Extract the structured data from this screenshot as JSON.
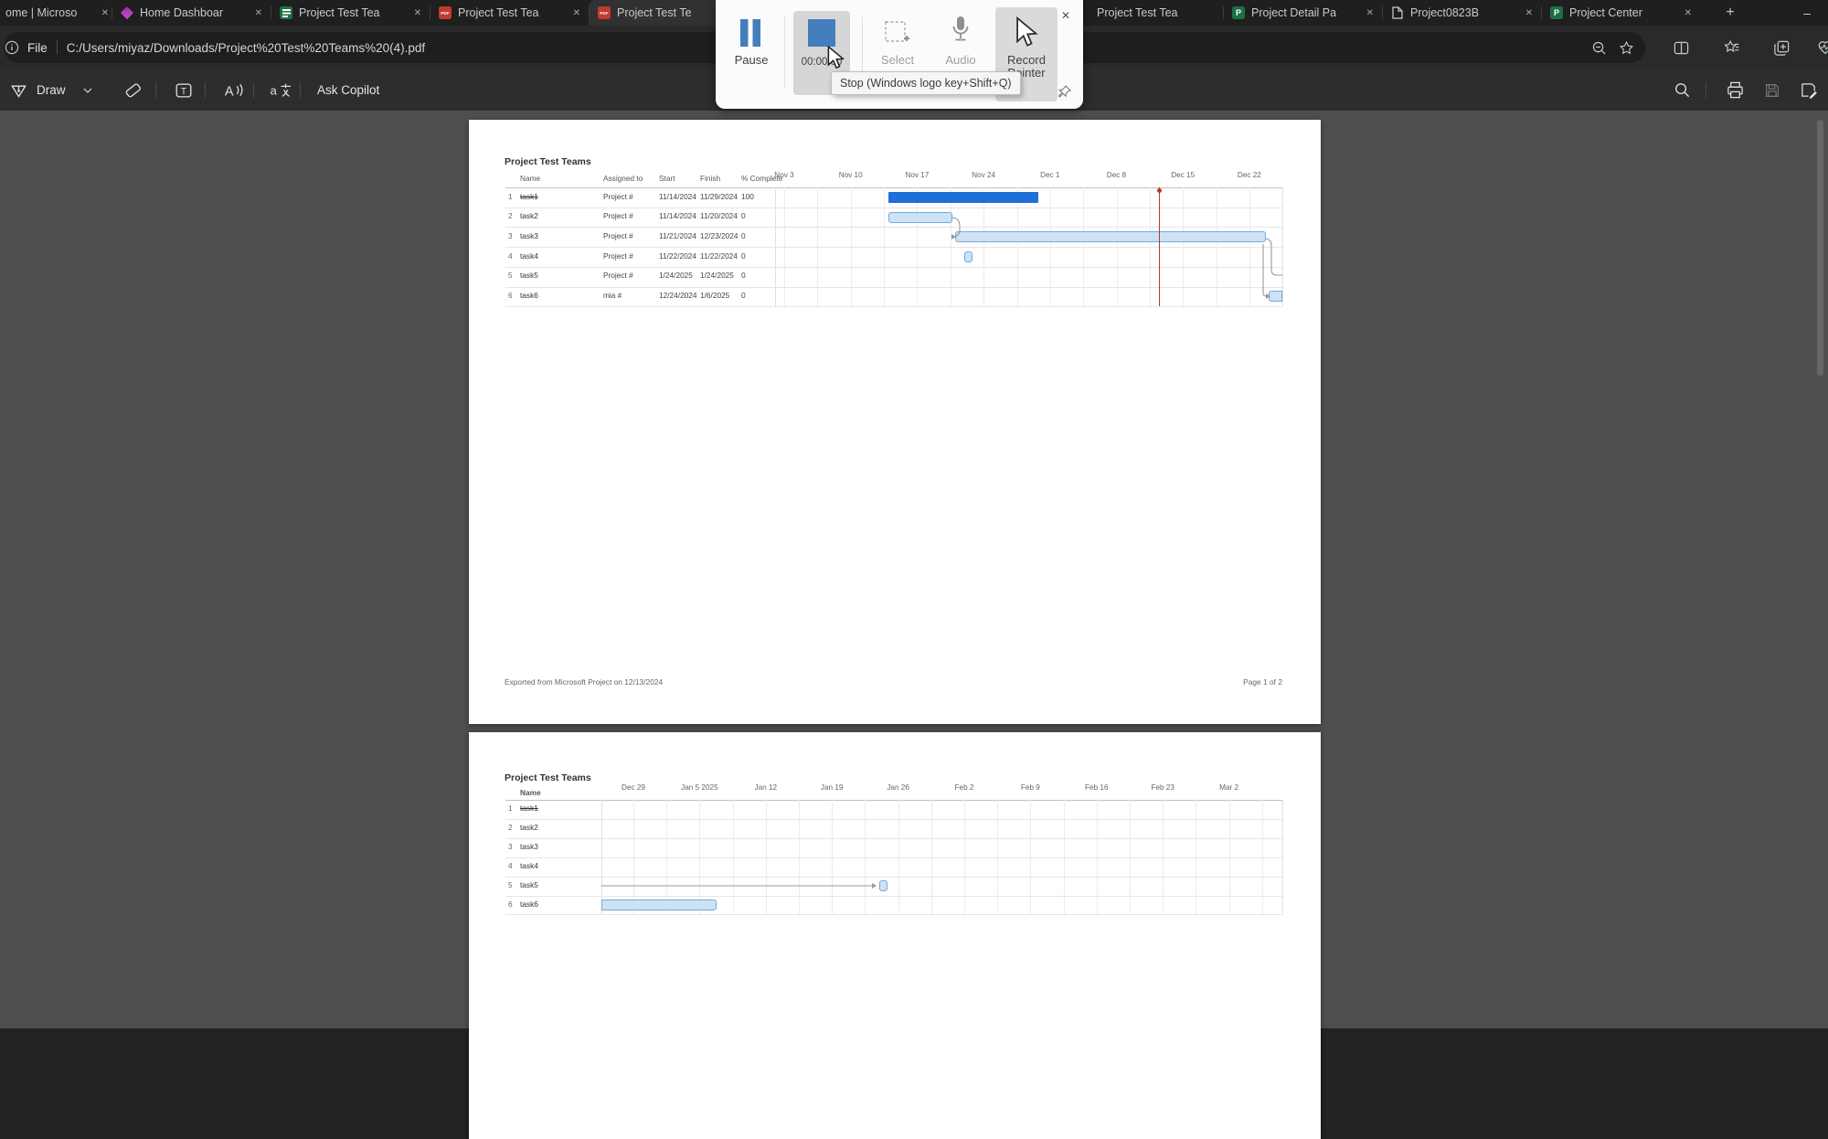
{
  "tab_bar": {
    "tabs": [
      {
        "label": "ome | Microso",
        "icon": "none",
        "active": false
      },
      {
        "label": "Home Dashboar",
        "icon": "powerapps",
        "active": false
      },
      {
        "label": "Project Test Tea",
        "icon": "planner",
        "active": false
      },
      {
        "label": "Project Test Tea",
        "icon": "pdf",
        "active": false
      },
      {
        "label": "Project Test Te",
        "icon": "pdf",
        "active": true
      },
      {
        "label": "Project Test Tea",
        "icon": "none",
        "active": false
      },
      {
        "label": "Project Detail Pa",
        "icon": "project",
        "active": false
      },
      {
        "label": "Project0823B",
        "icon": "file",
        "active": false
      },
      {
        "label": "Project Center",
        "icon": "project",
        "active": false
      }
    ],
    "new_tab_glyph": "+",
    "minimize_glyph": "–",
    "close_glyph": "✕"
  },
  "address_bar": {
    "file_label": "File",
    "url": "C:/Users/miyaz/Downloads/Project%20Test%20Teams%20(4).pdf"
  },
  "pdf_toolbar": {
    "draw_label": "Draw",
    "ask_copilot_label": "Ask Copilot"
  },
  "recorder": {
    "pause_label": "Pause",
    "timer": "00:00:00",
    "select_label": "Select",
    "audio_label": "Audio",
    "record_pointer_line1": "Record",
    "record_pointer_line2": "Pointer",
    "tooltip": "Stop (Windows logo key+Shift+Q)",
    "close_glyph": "✕"
  },
  "pdf": {
    "page1": {
      "title": "Project Test Teams",
      "columns": [
        "Name",
        "Assigned to",
        "Start",
        "Finish",
        "% Complete"
      ],
      "footer_left": "Exported from Microsoft Project on 12/13/2024",
      "footer_right": "Page 1 of 2"
    },
    "page2": {
      "title": "Project Test Teams",
      "name_column": "Name"
    }
  },
  "chart_data": {
    "type": "gantt",
    "title": "Project Test Teams",
    "status_date": "12/12/2024",
    "exported_on": "12/13/2024",
    "tasks": [
      {
        "id": "1",
        "name": "task1",
        "assigned_to": "Project #",
        "start": "11/14/2024",
        "finish": "11/29/2024",
        "pct": "100",
        "done": true
      },
      {
        "id": "2",
        "name": "task2",
        "assigned_to": "Project #",
        "start": "11/14/2024",
        "finish": "11/20/2024",
        "pct": "0",
        "done": false
      },
      {
        "id": "3",
        "name": "task3",
        "assigned_to": "Project #",
        "start": "11/21/2024",
        "finish": "12/23/2024",
        "pct": "0",
        "done": false
      },
      {
        "id": "4",
        "name": "task4",
        "assigned_to": "Project #",
        "start": "11/22/2024",
        "finish": "11/22/2024",
        "pct": "0",
        "done": false
      },
      {
        "id": "5",
        "name": "task5",
        "assigned_to": "Project #",
        "start": "1/24/2025",
        "finish": "1/24/2025",
        "pct": "0",
        "done": false
      },
      {
        "id": "6",
        "name": "task6",
        "assigned_to": "mia #",
        "start": "12/24/2024",
        "finish": "1/6/2025",
        "pct": "0",
        "done": false
      }
    ],
    "page1_ticks": [
      "Nov 3",
      "Nov 10",
      "Nov 17",
      "Nov 24",
      "Dec 1",
      "Dec 8",
      "Dec 15",
      "Dec 22"
    ],
    "page2_ticks": [
      "Dec 29",
      "Jan 5 2025",
      "Jan 12",
      "Jan 19",
      "Jan 26",
      "Feb 2",
      "Feb 9",
      "Feb 16",
      "Feb 23",
      "Mar 2"
    ],
    "colors": {
      "complete_bar": "#1e6fd8",
      "incomplete_fill": "#cde2f5",
      "incomplete_border": "#74a9d8",
      "status_line": "#b03a2e",
      "connector": "#999999"
    }
  }
}
